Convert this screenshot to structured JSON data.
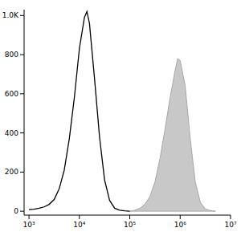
{
  "chart_data": {
    "type": "line",
    "log": "x",
    "grid": false,
    "xlim": [
      800,
      10000000
    ],
    "xticks": [
      {
        "value": 1000,
        "label": "10³"
      },
      {
        "value": 10000,
        "label": "10⁴"
      },
      {
        "value": 100000,
        "label": "10⁵"
      },
      {
        "value": 1000000,
        "label": "10⁶"
      },
      {
        "value": 10000000,
        "label": "10⁷"
      }
    ],
    "ylim": [
      -20,
      1030
    ],
    "yticks": [
      0,
      200,
      400,
      600,
      800,
      {
        "value": 1000,
        "label": "1.0K"
      }
    ],
    "series": [
      {
        "type": "area",
        "color": "#c8c8c8",
        "x": [
          100000,
          125893,
          158489,
          199526,
          251189,
          316228,
          398107,
          501187,
          630957,
          794328,
          891251,
          1000000,
          1258925,
          1584893,
          1995262,
          2511886,
          3162278,
          3981072,
          5011872
        ],
        "values": [
          0,
          5,
          15,
          35,
          75,
          150,
          270,
          420,
          580,
          720,
          780,
          770,
          640,
          370,
          150,
          45,
          12,
          3,
          0
        ]
      },
      {
        "type": "line",
        "color": "#000000",
        "x": [
          1000,
          1259,
          1585,
          1995,
          2512,
          3162,
          3981,
          5012,
          6310,
          7943,
          10000,
          12589,
          14125,
          15849,
          19953,
          25119,
          31623,
          39811,
          50119,
          63096,
          79433,
          100000
        ],
        "values": [
          8,
          10,
          15,
          22,
          35,
          60,
          115,
          210,
          370,
          580,
          830,
          990,
          1020,
          960,
          680,
          380,
          160,
          55,
          15,
          5,
          2,
          0
        ]
      }
    ]
  }
}
